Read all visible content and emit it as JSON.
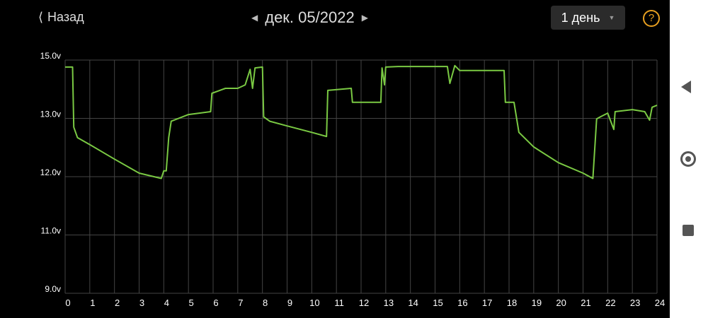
{
  "header": {
    "back_label": "Назад",
    "date": "дек. 05/2022",
    "range": "1 день",
    "help_symbol": "?"
  },
  "colors": {
    "line": "#7ac943",
    "grid": "#444444",
    "accent": "#e8a020",
    "background": "#000000"
  },
  "chart_data": {
    "type": "line",
    "title": "",
    "xlabel": "",
    "ylabel": "",
    "x_ticks": [
      "0",
      "1",
      "2",
      "3",
      "4",
      "5",
      "6",
      "7",
      "8",
      "9",
      "10",
      "11",
      "12",
      "13",
      "14",
      "15",
      "16",
      "17",
      "18",
      "19",
      "20",
      "21",
      "22",
      "23",
      "24"
    ],
    "y_ticks": [
      "15.0v",
      "13.0v",
      "12.0v",
      "11.0v",
      "9.0v"
    ],
    "y_tick_values": [
      15,
      13,
      12,
      11,
      9
    ],
    "xlim": [
      0,
      24
    ],
    "grid": true,
    "series": [
      {
        "x": [
          0,
          0.3,
          0.35,
          0.5,
          1,
          2,
          3,
          3.9,
          4.0,
          4.1,
          4.2,
          4.3,
          5,
          5.9,
          5.95,
          6.5,
          7,
          7.3,
          7.5,
          7.6,
          7.7,
          8.0,
          8.05,
          8.3,
          9,
          10,
          10.6,
          10.65,
          11.6,
          11.65,
          12.8,
          12.85,
          12.95,
          13.0,
          13.5,
          15.5,
          15.6,
          15.8,
          16,
          17.8,
          17.85,
          18.2,
          18.4,
          19,
          20,
          21,
          21.4,
          21.55,
          21.7,
          22,
          22.25,
          22.3,
          23,
          23.5,
          23.7,
          23.8,
          24
        ],
        "y": [
          14.76,
          14.76,
          12.85,
          12.67,
          12.55,
          12.3,
          12.06,
          11.97,
          12.1,
          12.1,
          12.67,
          12.95,
          13.13,
          13.23,
          13.86,
          14.03,
          14.03,
          14.15,
          14.68,
          14.03,
          14.73,
          14.76,
          13.05,
          12.95,
          12.87,
          12.76,
          12.69,
          13.96,
          14.03,
          13.55,
          13.55,
          14.73,
          14.15,
          14.76,
          14.78,
          14.78,
          14.2,
          14.81,
          14.64,
          14.64,
          13.55,
          13.55,
          12.76,
          12.51,
          12.24,
          12.06,
          11.97,
          12.99,
          13.05,
          13.18,
          12.81,
          13.23,
          13.3,
          13.23,
          12.97,
          13.38,
          13.45
        ]
      }
    ]
  }
}
